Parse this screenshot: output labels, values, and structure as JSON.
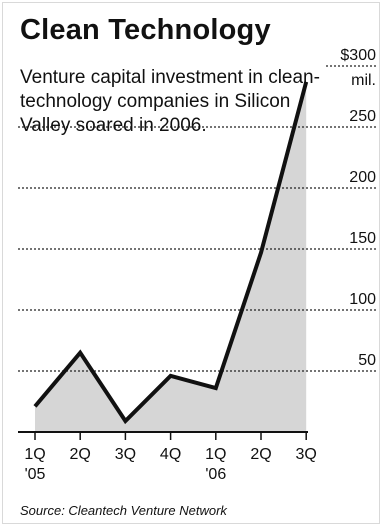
{
  "chart_data": {
    "type": "area",
    "title": "Clean Technology",
    "subtitle": "Venture capital investment in clean-technology companies in Silicon Valley soared in 2006.",
    "source": "Source: Cleantech Venture Network",
    "categories": [
      "1Q",
      "2Q",
      "3Q",
      "4Q",
      "1Q",
      "2Q",
      "3Q"
    ],
    "year_labels": [
      "'05",
      "",
      "",
      "",
      "'06",
      "",
      ""
    ],
    "series": [
      {
        "values": [
          21,
          65,
          9,
          46,
          36,
          147,
          287
        ]
      }
    ],
    "ylim": [
      0,
      300
    ],
    "yticks": [
      50,
      100,
      150,
      200,
      250,
      300
    ],
    "ytick_labels": [
      "50",
      "100",
      "150",
      "200",
      "250",
      "$300"
    ],
    "yunit_label": "mil.",
    "grid": true,
    "colors": {
      "line": "#111111",
      "fill": "#d6d6d6",
      "grid": "#222222",
      "text": "#111111"
    }
  }
}
